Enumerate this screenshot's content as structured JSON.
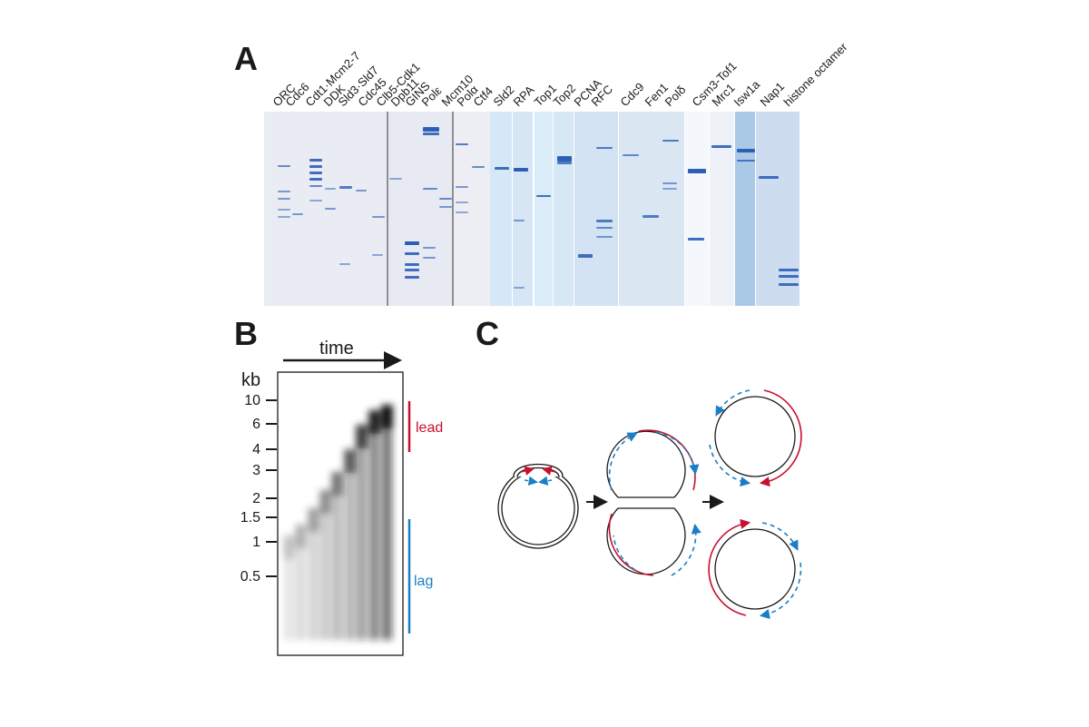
{
  "panel_labels": {
    "a": "A",
    "b": "B",
    "c": "C"
  },
  "panel_a": {
    "lanes": [
      "ORC",
      "Cdc6",
      "Cdt1·Mcm2-7",
      "DDK",
      "Sld3·Sld7",
      "Cdc45",
      "Clb5-Cdk1",
      "Dpb11",
      "GINS",
      "Polε",
      "Mcm10",
      "Polα",
      "Ctf4",
      "Sld2",
      "RPA",
      "Top1",
      "Top2",
      "PCNA",
      "RFC",
      "Cdc9",
      "Fen1",
      "Polδ",
      "Csm3-Tof1",
      "Mrc1",
      "Isw1a",
      "Nap1",
      "histone octamer"
    ]
  },
  "panel_b": {
    "time_label": "time",
    "kb_label": "kb",
    "ticks": [
      "10",
      "6",
      "4",
      "3",
      "2",
      "1.5",
      "1",
      "0.5"
    ],
    "lead_label": "lead",
    "lag_label": "lag",
    "colors": {
      "lead": "#c8102e",
      "lag": "#1a7fc4"
    }
  }
}
